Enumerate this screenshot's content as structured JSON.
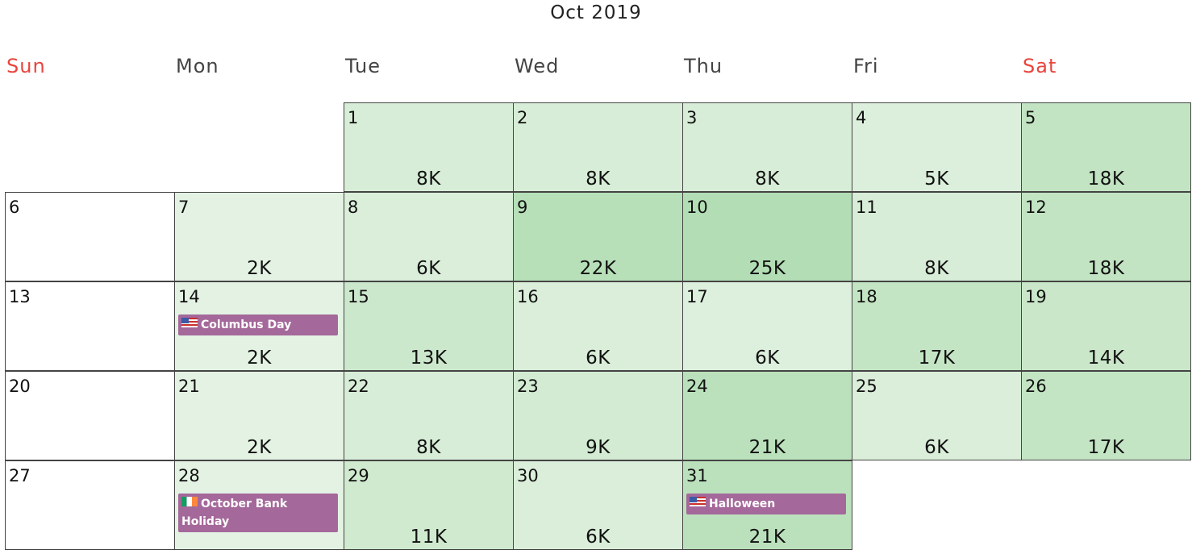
{
  "title": "Oct 2019",
  "weekdays": [
    "Sun",
    "Mon",
    "Tue",
    "Wed",
    "Thu",
    "Fri",
    "Sat"
  ],
  "weekend_color": "#e8453c",
  "holiday_color": "#a4689a",
  "days": [
    {
      "day": "1",
      "amount": "8K",
      "color": "#d7edd7"
    },
    {
      "day": "2",
      "amount": "8K",
      "color": "#d7edd7"
    },
    {
      "day": "3",
      "amount": "8K",
      "color": "#d7edd7"
    },
    {
      "day": "4",
      "amount": "5K",
      "color": "#dcefdc"
    },
    {
      "day": "5",
      "amount": "18K",
      "color": "#c2e4c2"
    },
    {
      "day": "6",
      "amount": "",
      "color": "#ffffff"
    },
    {
      "day": "7",
      "amount": "2K",
      "color": "#e3f2e3"
    },
    {
      "day": "8",
      "amount": "6K",
      "color": "#daeeda"
    },
    {
      "day": "9",
      "amount": "22K",
      "color": "#b7e0b9"
    },
    {
      "day": "10",
      "amount": "25K",
      "color": "#b3deb5"
    },
    {
      "day": "11",
      "amount": "8K",
      "color": "#d7edd7"
    },
    {
      "day": "12",
      "amount": "18K",
      "color": "#c2e4c2"
    },
    {
      "day": "13",
      "amount": "",
      "color": "#ffffff"
    },
    {
      "day": "14",
      "amount": "2K",
      "color": "#e3f2e3",
      "holiday": "Columbus Day",
      "flag": "us"
    },
    {
      "day": "15",
      "amount": "13K",
      "color": "#cce8cc"
    },
    {
      "day": "16",
      "amount": "6K",
      "color": "#daeeda"
    },
    {
      "day": "17",
      "amount": "6K",
      "color": "#ddefdd"
    },
    {
      "day": "18",
      "amount": "17K",
      "color": "#c4e5c4"
    },
    {
      "day": "19",
      "amount": "14K",
      "color": "#cae7ca"
    },
    {
      "day": "20",
      "amount": "",
      "color": "#ffffff"
    },
    {
      "day": "21",
      "amount": "2K",
      "color": "#e3f2e3"
    },
    {
      "day": "22",
      "amount": "8K",
      "color": "#d7edd7"
    },
    {
      "day": "23",
      "amount": "9K",
      "color": "#d3ebd3"
    },
    {
      "day": "24",
      "amount": "21K",
      "color": "#bbe1bc"
    },
    {
      "day": "25",
      "amount": "6K",
      "color": "#daeeda"
    },
    {
      "day": "26",
      "amount": "17K",
      "color": "#c4e5c4"
    },
    {
      "day": "27",
      "amount": "",
      "color": "#ffffff"
    },
    {
      "day": "28",
      "amount": "",
      "color": "#e3f2e3",
      "holiday": "October Bank Holiday",
      "flag": "ie"
    },
    {
      "day": "29",
      "amount": "11K",
      "color": "#d0eacf"
    },
    {
      "day": "30",
      "amount": "6K",
      "color": "#daeeda"
    },
    {
      "day": "31",
      "amount": "21K",
      "color": "#bbe1bc",
      "holiday": "Halloween",
      "flag": "us"
    }
  ]
}
